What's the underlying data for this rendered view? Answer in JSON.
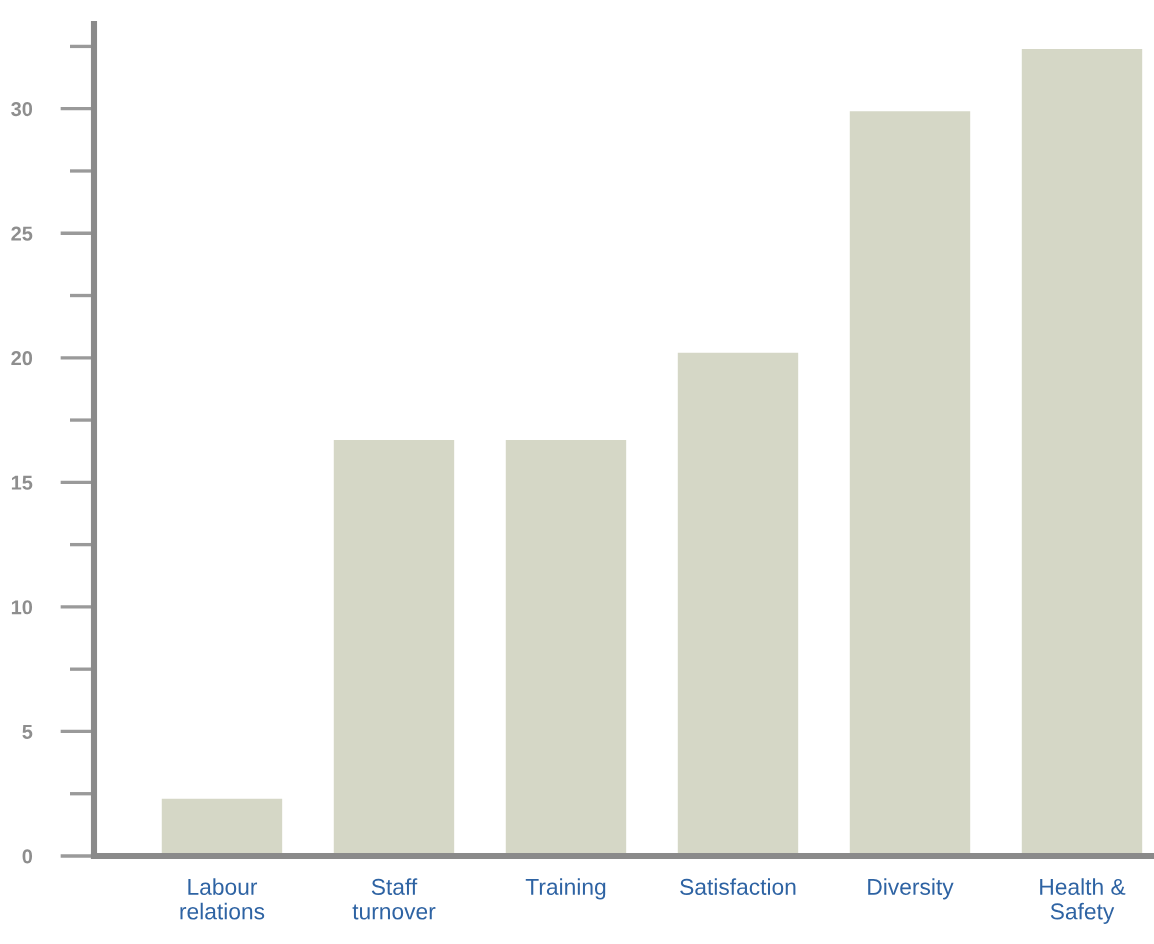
{
  "chart_data": {
    "type": "bar",
    "categories": [
      "Labour\nrelations",
      "Staff\nturnover",
      "Training",
      "Satisfaction",
      "Diversity",
      "Health &\nSafety"
    ],
    "values": [
      2.3,
      16.7,
      16.7,
      20.2,
      29.9,
      32.4
    ],
    "color": "#d5d7c6",
    "ylim": [
      0,
      33.4
    ],
    "yticks": [
      0,
      {
        "value": 2.5,
        "label": null
      },
      5,
      {
        "value": 7.5,
        "label": null
      },
      10,
      {
        "value": 12.5,
        "label": null
      },
      15,
      {
        "value": 17.5,
        "label": null
      },
      20,
      {
        "value": 22.5,
        "label": null
      },
      25,
      {
        "value": 27.5,
        "label": null
      },
      30,
      {
        "value": 32.5,
        "label": null
      }
    ],
    "grid": false
  }
}
